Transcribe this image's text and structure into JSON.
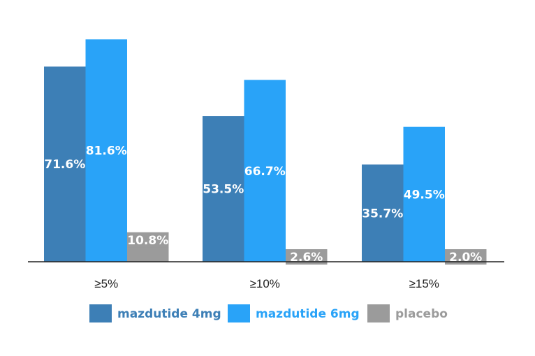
{
  "chart_data": {
    "type": "bar",
    "categories": [
      "≥5%",
      "≥10%",
      "≥15%"
    ],
    "series": [
      {
        "name": "mazdutide 4mg",
        "values": [
          71.6,
          53.5,
          35.7
        ],
        "labels": [
          "71.6%",
          "53.5%",
          "35.7%"
        ],
        "color": "#3d7fb6",
        "legend_text_color": "#3d7fb6"
      },
      {
        "name": "mazdutide 6mg",
        "values": [
          81.6,
          66.7,
          49.5
        ],
        "labels": [
          "81.6%",
          "66.7%",
          "49.5%"
        ],
        "color": "#29a3f8",
        "legend_text_color": "#29a3f8"
      },
      {
        "name": "placebo",
        "values": [
          10.8,
          2.6,
          2.0
        ],
        "labels": [
          "10.8%",
          "2.6%",
          "2.0%"
        ],
        "color": "#9b9b9b",
        "legend_text_color": "#9b9b9b"
      }
    ],
    "title": "",
    "xlabel": "",
    "ylabel": "",
    "ylim": [
      0,
      100
    ],
    "grid": false,
    "legend_position": "bottom"
  }
}
